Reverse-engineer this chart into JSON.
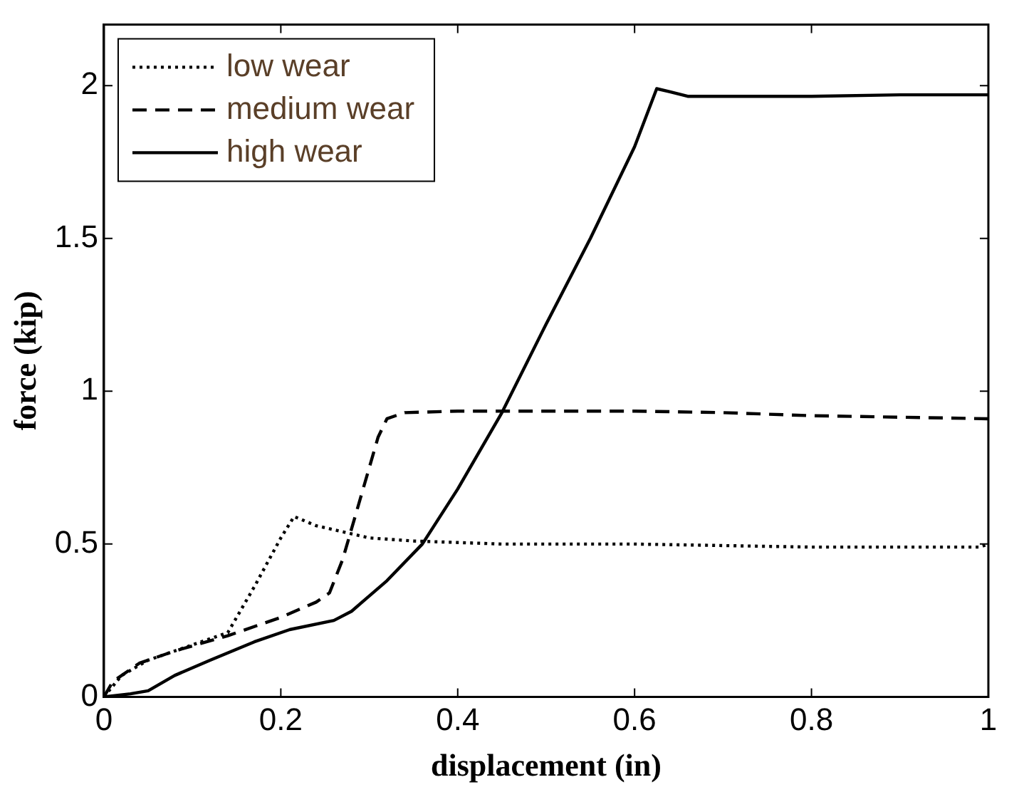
{
  "chart_data": {
    "type": "line",
    "xlabel": "displacement (in)",
    "ylabel": "force (kip)",
    "xlim": [
      0,
      1
    ],
    "xticks": [
      0,
      0.2,
      0.4,
      0.6,
      0.8,
      1
    ],
    "ylim": [
      0,
      2.2
    ],
    "yticks": [
      0,
      0.5,
      1,
      1.5,
      2
    ],
    "grid": false,
    "legend": "top left",
    "marker": "none",
    "series": [
      {
        "name": "low wear",
        "color": "#000000",
        "line_style": "dotted",
        "x": [
          0,
          0.02,
          0.05,
          0.1,
          0.14,
          0.17,
          0.2,
          0.215,
          0.24,
          0.3,
          0.35,
          0.45,
          0.6,
          0.7,
          0.8,
          0.9,
          0.99,
          1
        ],
        "values": [
          0,
          0.07,
          0.12,
          0.17,
          0.21,
          0.36,
          0.52,
          0.59,
          0.56,
          0.52,
          0.51,
          0.5,
          0.5,
          0.495,
          0.49,
          0.49,
          0.49,
          0.5
        ]
      },
      {
        "name": "medium wear",
        "color": "#000000",
        "line_style": "dashed",
        "x": [
          0,
          0.01,
          0.04,
          0.08,
          0.14,
          0.2,
          0.24,
          0.255,
          0.27,
          0.29,
          0.31,
          0.32,
          0.34,
          0.4,
          0.6,
          0.7,
          0.8,
          0.9,
          1
        ],
        "values": [
          0,
          0.05,
          0.11,
          0.15,
          0.2,
          0.26,
          0.31,
          0.34,
          0.45,
          0.65,
          0.85,
          0.91,
          0.93,
          0.935,
          0.935,
          0.93,
          0.92,
          0.915,
          0.91
        ]
      },
      {
        "name": "high wear",
        "color": "#000000",
        "line_style": "solid",
        "x": [
          0,
          0.03,
          0.05,
          0.08,
          0.12,
          0.17,
          0.21,
          0.26,
          0.28,
          0.32,
          0.36,
          0.4,
          0.45,
          0.5,
          0.55,
          0.6,
          0.625,
          0.64,
          0.66,
          0.8,
          0.9,
          1
        ],
        "values": [
          0,
          0.01,
          0.02,
          0.07,
          0.12,
          0.18,
          0.22,
          0.25,
          0.28,
          0.38,
          0.5,
          0.68,
          0.93,
          1.22,
          1.5,
          1.8,
          1.99,
          1.98,
          1.965,
          1.965,
          1.97,
          1.97
        ]
      }
    ]
  }
}
